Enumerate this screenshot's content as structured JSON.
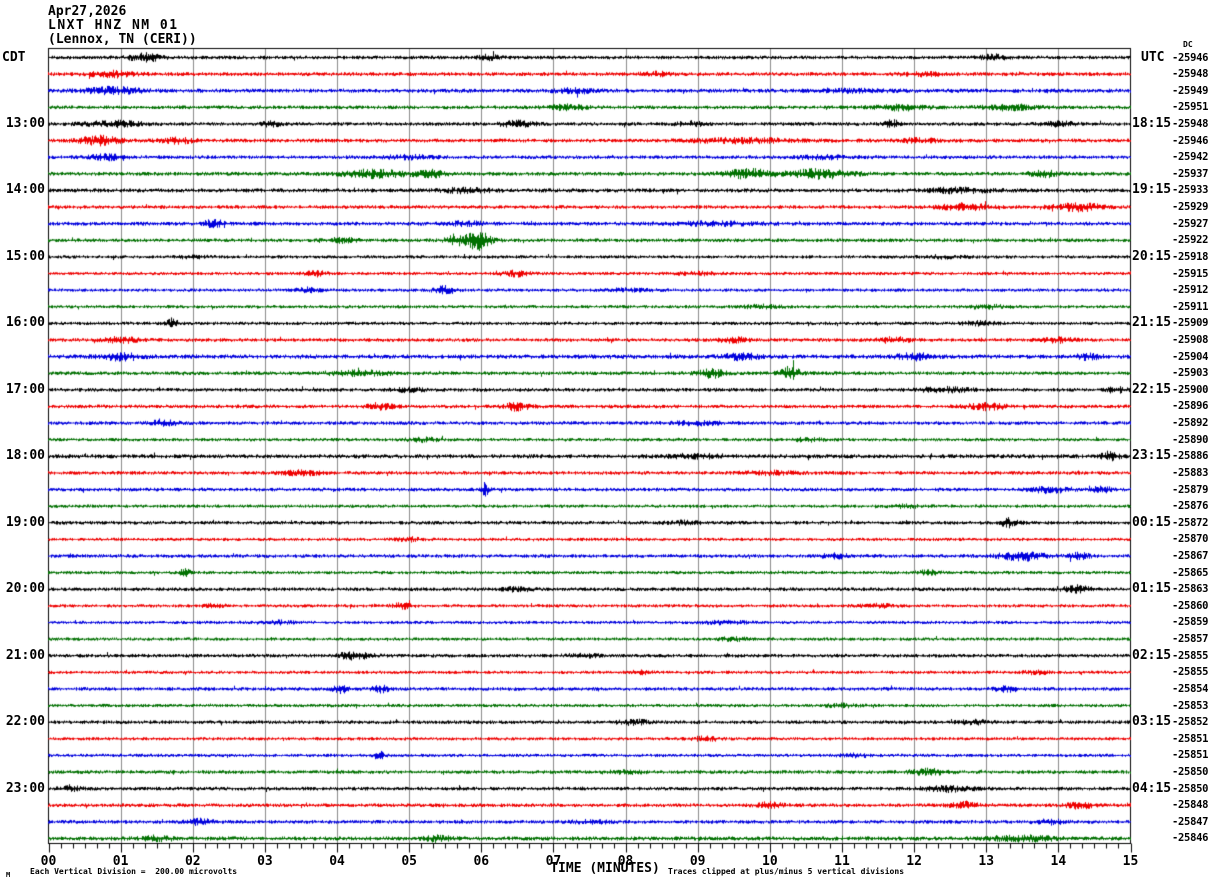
{
  "header": {
    "date": "Apr27,2026",
    "station": "LNXT HNZ NM 01",
    "location": "(Lennox, TN (CERI))"
  },
  "axes": {
    "left_label": "CDT",
    "right_label": "UTC",
    "dc_label": "DC",
    "x_title": "TIME (MINUTES)",
    "x_ticks": [
      "00",
      "01",
      "02",
      "03",
      "04",
      "05",
      "06",
      "07",
      "08",
      "09",
      "10",
      "11",
      "12",
      "13",
      "14",
      "15"
    ],
    "footer_mark": "M",
    "footer_left": "Each Vertical Division =  200.00 microvolts",
    "footer_right": "Traces clipped at plus/minus 5 vertical divisions"
  },
  "colors": {
    "black": "#000000",
    "red": "#ee0000",
    "blue": "#0000dd",
    "green": "#007000",
    "grid": "#8a8a8a",
    "frame": "#000000"
  },
  "chart_data": {
    "type": "line",
    "subtype": "helicorder",
    "title": "LNXT HNZ NM 01 (Lennox, TN (CERI)) Apr27,2026",
    "xlabel": "TIME (MINUTES)",
    "x_range_minutes": [
      0,
      15
    ],
    "minutes_per_line": 15,
    "minor_tick_seconds": 10,
    "grid": true,
    "vertical_division_microvolts": 200.0,
    "clip_divisions": 5,
    "trace_color_cycle": [
      "black",
      "red",
      "blue",
      "green"
    ],
    "rows": [
      {
        "color": "black",
        "cdt": "",
        "utc": "",
        "dc": "-25946",
        "base": 1.9,
        "bursts": [
          [
            1.35,
            0.5,
            3.5
          ],
          [
            6.1,
            0.3,
            2.5
          ],
          [
            13.1,
            0.4,
            2.5
          ]
        ]
      },
      {
        "color": "red",
        "cdt": "",
        "utc": "",
        "dc": "-25948",
        "base": 2.0,
        "bursts": [
          [
            0.9,
            0.7,
            2.5
          ],
          [
            8.4,
            0.4,
            2.0
          ],
          [
            12.1,
            0.6,
            1.5
          ]
        ]
      },
      {
        "color": "blue",
        "cdt": "",
        "utc": "",
        "dc": "-25949",
        "base": 2.1,
        "bursts": [
          [
            0.9,
            0.8,
            3.0
          ],
          [
            7.3,
            0.6,
            2.0
          ],
          [
            11.2,
            1.0,
            1.2
          ]
        ]
      },
      {
        "color": "green",
        "cdt": "",
        "utc": "",
        "dc": "-25951",
        "base": 1.9,
        "bursts": [
          [
            7.2,
            0.6,
            2.2
          ],
          [
            11.8,
            0.8,
            2.5
          ],
          [
            13.3,
            0.8,
            2.5
          ]
        ]
      },
      {
        "color": "black",
        "cdt": "13:00",
        "utc": "18:15",
        "dc": "-25948",
        "base": 1.9,
        "bursts": [
          [
            0.9,
            0.9,
            2.5
          ],
          [
            3.1,
            0.3,
            2.5
          ],
          [
            6.5,
            0.5,
            3.0
          ],
          [
            8.9,
            0.4,
            2.0
          ],
          [
            11.7,
            0.3,
            3.0
          ],
          [
            14.0,
            0.5,
            2.0
          ]
        ]
      },
      {
        "color": "red",
        "cdt": "",
        "utc": "",
        "dc": "-25946",
        "base": 2.0,
        "bursts": [
          [
            0.7,
            0.6,
            4.0
          ],
          [
            1.8,
            0.5,
            2.5
          ],
          [
            9.6,
            1.5,
            2.0
          ],
          [
            12.1,
            0.6,
            2.0
          ]
        ]
      },
      {
        "color": "blue",
        "cdt": "",
        "utc": "",
        "dc": "-25942",
        "base": 1.9,
        "bursts": [
          [
            0.8,
            0.5,
            2.5
          ],
          [
            5.0,
            0.8,
            1.5
          ],
          [
            10.7,
            1.0,
            1.5
          ]
        ]
      },
      {
        "color": "green",
        "cdt": "",
        "utc": "",
        "dc": "-25937",
        "base": 2.0,
        "bursts": [
          [
            4.5,
            1.0,
            3.5
          ],
          [
            5.3,
            0.5,
            3.0
          ],
          [
            9.7,
            0.7,
            4.0
          ],
          [
            10.7,
            1.0,
            4.0
          ],
          [
            13.8,
            0.4,
            3.5
          ]
        ]
      },
      {
        "color": "black",
        "cdt": "14:00",
        "utc": "19:15",
        "dc": "-25933",
        "base": 2.1,
        "bursts": [
          [
            5.8,
            0.8,
            2.0
          ],
          [
            12.6,
            1.0,
            2.0
          ]
        ]
      },
      {
        "color": "red",
        "cdt": "",
        "utc": "",
        "dc": "-25929",
        "base": 1.9,
        "bursts": [
          [
            12.7,
            0.7,
            3.0
          ],
          [
            14.3,
            0.8,
            3.5
          ]
        ]
      },
      {
        "color": "blue",
        "cdt": "",
        "utc": "",
        "dc": "-25927",
        "base": 2.0,
        "bursts": [
          [
            2.3,
            0.25,
            4.0
          ],
          [
            5.8,
            0.5,
            2.0
          ],
          [
            9.2,
            1.5,
            1.5
          ]
        ]
      },
      {
        "color": "green",
        "cdt": "",
        "utc": "",
        "dc": "-25922",
        "base": 1.9,
        "bursts": [
          [
            4.1,
            0.5,
            2.0
          ],
          [
            5.62,
            0.25,
            5.0
          ],
          [
            5.95,
            0.4,
            9.0
          ]
        ]
      },
      {
        "color": "black",
        "cdt": "15:00",
        "utc": "20:15",
        "dc": "-25918",
        "base": 1.7,
        "bursts": [
          [
            2.0,
            0.5,
            1.2
          ],
          [
            12.4,
            0.6,
            1.5
          ]
        ]
      },
      {
        "color": "red",
        "cdt": "",
        "utc": "",
        "dc": "-25915",
        "base": 1.7,
        "bursts": [
          [
            3.7,
            0.3,
            2.5
          ],
          [
            6.5,
            0.4,
            2.5
          ],
          [
            9.0,
            0.6,
            1.5
          ]
        ]
      },
      {
        "color": "blue",
        "cdt": "",
        "utc": "",
        "dc": "-25912",
        "base": 1.7,
        "bursts": [
          [
            3.6,
            0.4,
            2.0
          ],
          [
            5.5,
            0.35,
            3.5
          ],
          [
            8.0,
            0.8,
            1.3
          ]
        ]
      },
      {
        "color": "green",
        "cdt": "",
        "utc": "",
        "dc": "-25911",
        "base": 1.7,
        "bursts": [
          [
            9.9,
            0.5,
            1.8
          ],
          [
            13.0,
            0.6,
            1.8
          ]
        ]
      },
      {
        "color": "black",
        "cdt": "16:00",
        "utc": "21:15",
        "dc": "-25909",
        "base": 1.8,
        "bursts": [
          [
            1.72,
            0.15,
            5.0
          ],
          [
            12.9,
            0.5,
            1.8
          ]
        ]
      },
      {
        "color": "red",
        "cdt": "",
        "utc": "",
        "dc": "-25908",
        "base": 1.9,
        "bursts": [
          [
            1.0,
            0.5,
            2.5
          ],
          [
            9.5,
            0.4,
            2.5
          ],
          [
            11.7,
            0.5,
            2.5
          ],
          [
            14.0,
            0.5,
            2.0
          ]
        ]
      },
      {
        "color": "blue",
        "cdt": "",
        "utc": "",
        "dc": "-25904",
        "base": 2.2,
        "bursts": [
          [
            1.0,
            0.6,
            3.0
          ],
          [
            9.6,
            0.5,
            3.0
          ],
          [
            12.0,
            0.5,
            3.0
          ],
          [
            14.4,
            0.4,
            2.5
          ]
        ]
      },
      {
        "color": "green",
        "cdt": "",
        "utc": "",
        "dc": "-25903",
        "base": 1.9,
        "bursts": [
          [
            4.3,
            1.0,
            2.2
          ],
          [
            9.2,
            0.4,
            4.0
          ],
          [
            10.28,
            0.3,
            6.0
          ]
        ]
      },
      {
        "color": "black",
        "cdt": "17:00",
        "utc": "22:15",
        "dc": "-25900",
        "base": 1.9,
        "bursts": [
          [
            5.0,
            0.5,
            1.5
          ],
          [
            12.4,
            0.8,
            2.2
          ],
          [
            14.8,
            0.3,
            2.5
          ]
        ]
      },
      {
        "color": "red",
        "cdt": "",
        "utc": "",
        "dc": "-25896",
        "base": 1.9,
        "bursts": [
          [
            4.6,
            0.4,
            3.0
          ],
          [
            6.5,
            0.4,
            3.5
          ],
          [
            13.0,
            0.6,
            3.0
          ]
        ]
      },
      {
        "color": "blue",
        "cdt": "",
        "utc": "",
        "dc": "-25892",
        "base": 1.9,
        "bursts": [
          [
            1.6,
            0.4,
            3.0
          ],
          [
            9.0,
            0.8,
            1.5
          ]
        ]
      },
      {
        "color": "green",
        "cdt": "",
        "utc": "",
        "dc": "-25890",
        "base": 1.7,
        "bursts": [
          [
            5.2,
            0.5,
            1.8
          ],
          [
            10.5,
            0.5,
            1.5
          ]
        ]
      },
      {
        "color": "black",
        "cdt": "18:00",
        "utc": "23:15",
        "dc": "-25886",
        "base": 2.1,
        "bursts": [
          [
            9.0,
            1.0,
            1.5
          ],
          [
            14.72,
            0.25,
            4.5
          ]
        ]
      },
      {
        "color": "red",
        "cdt": "",
        "utc": "",
        "dc": "-25883",
        "base": 1.9,
        "bursts": [
          [
            3.5,
            0.6,
            2.0
          ],
          [
            10.0,
            0.8,
            1.5
          ]
        ]
      },
      {
        "color": "blue",
        "cdt": "",
        "utc": "",
        "dc": "-25879",
        "base": 1.9,
        "bursts": [
          [
            6.05,
            0.12,
            6.0
          ],
          [
            13.9,
            0.6,
            3.0
          ],
          [
            14.6,
            0.3,
            2.5
          ]
        ]
      },
      {
        "color": "green",
        "cdt": "",
        "utc": "",
        "dc": "-25876",
        "base": 1.7,
        "bursts": [
          [
            11.9,
            0.5,
            1.5
          ]
        ]
      },
      {
        "color": "black",
        "cdt": "19:00",
        "utc": "00:15",
        "dc": "-25872",
        "base": 1.9,
        "bursts": [
          [
            8.8,
            0.5,
            1.5
          ],
          [
            13.3,
            0.3,
            4.0
          ]
        ]
      },
      {
        "color": "red",
        "cdt": "",
        "utc": "",
        "dc": "-25870",
        "base": 1.7,
        "bursts": [
          [
            5.0,
            0.4,
            1.8
          ]
        ]
      },
      {
        "color": "blue",
        "cdt": "",
        "utc": "",
        "dc": "-25867",
        "base": 1.9,
        "bursts": [
          [
            10.9,
            0.4,
            2.0
          ],
          [
            13.5,
            0.7,
            4.0
          ],
          [
            14.3,
            0.3,
            3.0
          ]
        ]
      },
      {
        "color": "green",
        "cdt": "",
        "utc": "",
        "dc": "-25865",
        "base": 1.7,
        "bursts": [
          [
            1.9,
            0.15,
            4.0
          ],
          [
            12.2,
            0.4,
            1.8
          ]
        ]
      },
      {
        "color": "black",
        "cdt": "20:00",
        "utc": "01:15",
        "dc": "-25863",
        "base": 1.9,
        "bursts": [
          [
            6.5,
            0.4,
            1.8
          ],
          [
            14.25,
            0.4,
            3.5
          ]
        ]
      },
      {
        "color": "red",
        "cdt": "",
        "utc": "",
        "dc": "-25860",
        "base": 1.7,
        "bursts": [
          [
            2.3,
            0.3,
            2.5
          ],
          [
            4.9,
            0.3,
            2.5
          ],
          [
            11.5,
            0.6,
            1.5
          ]
        ]
      },
      {
        "color": "blue",
        "cdt": "",
        "utc": "",
        "dc": "-25859",
        "base": 1.7,
        "bursts": [
          [
            3.2,
            0.4,
            1.5
          ],
          [
            9.4,
            0.6,
            1.5
          ]
        ]
      },
      {
        "color": "green",
        "cdt": "",
        "utc": "",
        "dc": "-25857",
        "base": 1.7,
        "bursts": [
          [
            9.5,
            0.5,
            1.5
          ]
        ]
      },
      {
        "color": "black",
        "cdt": "21:00",
        "utc": "02:15",
        "dc": "-25855",
        "base": 1.9,
        "bursts": [
          [
            4.25,
            0.5,
            3.5
          ],
          [
            7.4,
            0.5,
            1.5
          ]
        ]
      },
      {
        "color": "red",
        "cdt": "",
        "utc": "",
        "dc": "-25855",
        "base": 1.7,
        "bursts": [
          [
            8.2,
            0.3,
            1.8
          ],
          [
            13.7,
            0.4,
            1.5
          ]
        ]
      },
      {
        "color": "blue",
        "cdt": "",
        "utc": "",
        "dc": "-25854",
        "base": 1.9,
        "bursts": [
          [
            4.05,
            0.25,
            3.5
          ],
          [
            4.6,
            0.25,
            3.0
          ],
          [
            13.3,
            0.4,
            2.5
          ]
        ]
      },
      {
        "color": "green",
        "cdt": "",
        "utc": "",
        "dc": "-25853",
        "base": 1.7,
        "bursts": [
          [
            11.0,
            0.5,
            1.5
          ]
        ]
      },
      {
        "color": "black",
        "cdt": "22:00",
        "utc": "03:15",
        "dc": "-25852",
        "base": 1.9,
        "bursts": [
          [
            8.1,
            0.5,
            2.0
          ],
          [
            12.8,
            0.5,
            1.8
          ]
        ]
      },
      {
        "color": "red",
        "cdt": "",
        "utc": "",
        "dc": "-25851",
        "base": 1.7,
        "bursts": [
          [
            9.1,
            0.4,
            1.8
          ]
        ]
      },
      {
        "color": "blue",
        "cdt": "",
        "utc": "",
        "dc": "-25851",
        "base": 1.7,
        "bursts": [
          [
            4.58,
            0.15,
            4.0
          ],
          [
            11.2,
            0.5,
            1.5
          ]
        ]
      },
      {
        "color": "green",
        "cdt": "",
        "utc": "",
        "dc": "-25850",
        "base": 1.9,
        "bursts": [
          [
            8.0,
            0.5,
            1.5
          ],
          [
            12.2,
            0.6,
            2.5
          ]
        ]
      },
      {
        "color": "black",
        "cdt": "23:00",
        "utc": "04:15",
        "dc": "-25850",
        "base": 1.9,
        "bursts": [
          [
            0.3,
            0.3,
            2.5
          ],
          [
            12.5,
            0.8,
            2.5
          ]
        ]
      },
      {
        "color": "red",
        "cdt": "",
        "utc": "",
        "dc": "-25848",
        "base": 1.9,
        "bursts": [
          [
            10.0,
            0.4,
            2.5
          ],
          [
            12.7,
            0.4,
            3.0
          ],
          [
            14.3,
            0.4,
            3.0
          ]
        ]
      },
      {
        "color": "blue",
        "cdt": "",
        "utc": "",
        "dc": "-25847",
        "base": 1.9,
        "bursts": [
          [
            2.1,
            0.4,
            2.5
          ],
          [
            7.5,
            0.6,
            1.5
          ],
          [
            13.9,
            0.5,
            2.0
          ]
        ]
      },
      {
        "color": "green",
        "cdt": "",
        "utc": "",
        "dc": "-25846",
        "base": 2.1,
        "bursts": [
          [
            1.5,
            0.5,
            2.0
          ],
          [
            5.4,
            0.4,
            2.5
          ],
          [
            13.5,
            1.0,
            2.5
          ]
        ]
      }
    ]
  }
}
